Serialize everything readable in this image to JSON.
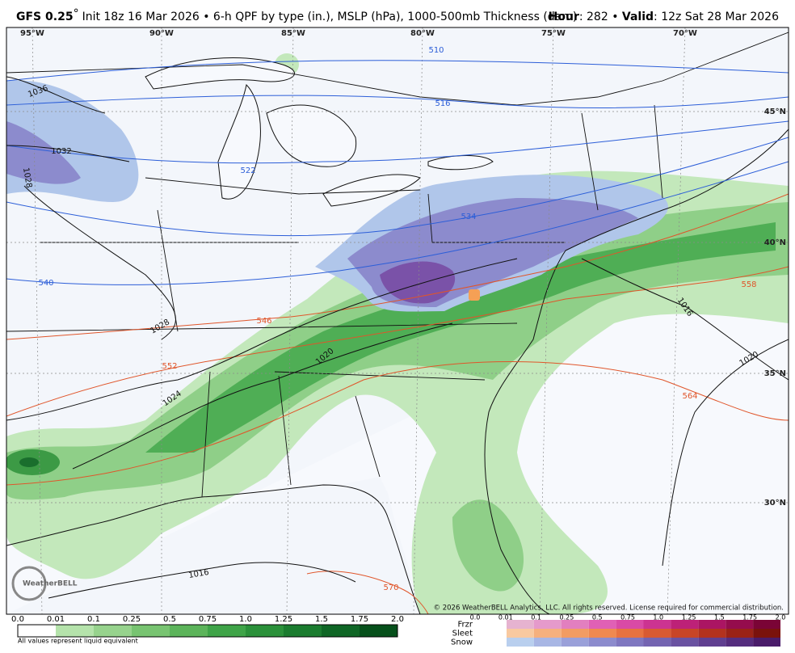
{
  "header": {
    "model": "GFS 0.25",
    "degree": "°",
    "description": "Init 18z 16 Mar 2026 • 6-h QPF by type (in.), MSLP (hPa), 1000-500mb Thickness (dam)",
    "hour_label": "Hour",
    "hour_value": ": 282 • ",
    "valid_label": "Valid",
    "valid_value": ": 12z Sat 28 Mar 2026"
  },
  "map": {
    "longitude_labels": [
      "95°W",
      "90°W",
      "85°W",
      "80°W",
      "75°W",
      "70°W"
    ],
    "latitude_labels": [
      "45°N",
      "40°N",
      "35°N",
      "30°N"
    ],
    "pressure_labels": [
      "1036",
      "1032",
      "1028",
      "1028",
      "1024",
      "1020",
      "1016",
      "1020",
      "1016"
    ],
    "thickness_labels": [
      "510",
      "516",
      "522",
      "534",
      "540",
      "546",
      "552",
      "558",
      "564",
      "570"
    ],
    "logo": "WeatherBELL",
    "copyright": "© 2026 WeatherBELL Analytics, LLC. All rights reserved. License required for commercial distribution."
  },
  "legend": {
    "qpf_ticks": [
      "0.0",
      "0.01",
      "0.1",
      "0.25",
      "0.5",
      "0.75",
      "1.0",
      "1.25",
      "1.5",
      "1.75",
      "2.0"
    ],
    "note": "All values represent liquid equivalent",
    "types": [
      "Frzr",
      "Sleet",
      "Snow"
    ],
    "type_ticks": [
      "0.0",
      "0.01",
      "0.1",
      "0.25",
      "0.5",
      "0.75",
      "1.0",
      "1.25",
      "1.5",
      "1.75",
      "2.0"
    ]
  }
}
